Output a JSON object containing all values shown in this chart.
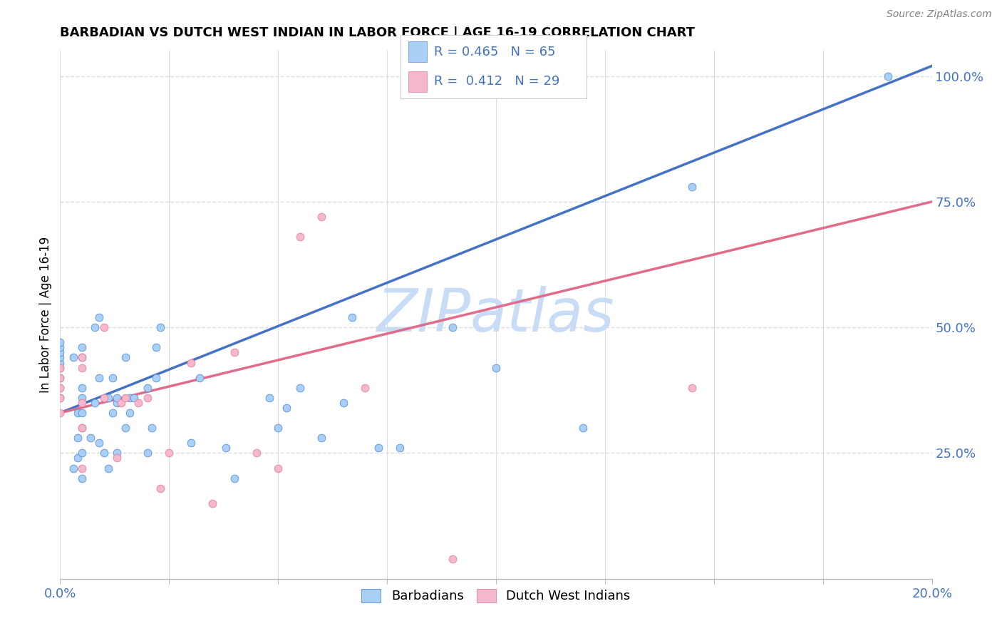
{
  "title": "BARBADIAN VS DUTCH WEST INDIAN IN LABOR FORCE | AGE 16-19 CORRELATION CHART",
  "source": "Source: ZipAtlas.com",
  "ylabel": "In Labor Force | Age 16-19",
  "xlim": [
    0.0,
    0.2
  ],
  "ylim": [
    0.0,
    1.05
  ],
  "xtick_positions": [
    0.0,
    0.025,
    0.05,
    0.075,
    0.1,
    0.125,
    0.15,
    0.175,
    0.2
  ],
  "xticklabels": [
    "0.0%",
    "",
    "",
    "",
    "",
    "",
    "",
    "",
    "20.0%"
  ],
  "ytick_positions": [
    0.25,
    0.5,
    0.75,
    1.0
  ],
  "ytick_labels": [
    "25.0%",
    "50.0%",
    "75.0%",
    "100.0%"
  ],
  "barbadian_color": "#A8D0F5",
  "dutch_color": "#F5B8CA",
  "barbadian_edge_color": "#5B8DD9",
  "dutch_edge_color": "#E87DA0",
  "barbadian_line_color": "#4472C4",
  "dutch_line_color": "#E06B8B",
  "legend_color_text": "#4472C4",
  "watermark": "ZIPatlas",
  "watermark_color": "#C8DCF5",
  "barbadian_x": [
    0.0,
    0.0,
    0.0,
    0.0,
    0.0,
    0.0,
    0.0,
    0.0,
    0.0,
    0.003,
    0.003,
    0.004,
    0.004,
    0.004,
    0.005,
    0.005,
    0.005,
    0.005,
    0.005,
    0.005,
    0.005,
    0.005,
    0.007,
    0.008,
    0.008,
    0.009,
    0.009,
    0.009,
    0.01,
    0.011,
    0.011,
    0.012,
    0.012,
    0.013,
    0.013,
    0.013,
    0.015,
    0.015,
    0.016,
    0.016,
    0.017,
    0.02,
    0.02,
    0.021,
    0.022,
    0.022,
    0.023,
    0.03,
    0.032,
    0.038,
    0.04,
    0.048,
    0.05,
    0.052,
    0.055,
    0.06,
    0.065,
    0.067,
    0.073,
    0.078,
    0.09,
    0.1,
    0.12,
    0.145,
    0.19
  ],
  "barbadian_y": [
    0.36,
    0.38,
    0.4,
    0.42,
    0.43,
    0.44,
    0.45,
    0.46,
    0.47,
    0.22,
    0.44,
    0.24,
    0.28,
    0.33,
    0.2,
    0.25,
    0.3,
    0.33,
    0.36,
    0.38,
    0.44,
    0.46,
    0.28,
    0.35,
    0.5,
    0.27,
    0.4,
    0.52,
    0.25,
    0.22,
    0.36,
    0.33,
    0.4,
    0.25,
    0.35,
    0.36,
    0.3,
    0.44,
    0.33,
    0.36,
    0.36,
    0.25,
    0.38,
    0.3,
    0.4,
    0.46,
    0.5,
    0.27,
    0.4,
    0.26,
    0.2,
    0.36,
    0.3,
    0.34,
    0.38,
    0.28,
    0.35,
    0.52,
    0.26,
    0.26,
    0.5,
    0.42,
    0.3,
    0.78,
    1.0
  ],
  "dutch_x": [
    0.0,
    0.0,
    0.0,
    0.0,
    0.0,
    0.005,
    0.005,
    0.005,
    0.005,
    0.005,
    0.01,
    0.01,
    0.013,
    0.014,
    0.015,
    0.018,
    0.02,
    0.023,
    0.025,
    0.03,
    0.035,
    0.04,
    0.045,
    0.05,
    0.055,
    0.06,
    0.07,
    0.09,
    0.145
  ],
  "dutch_y": [
    0.33,
    0.36,
    0.38,
    0.4,
    0.42,
    0.22,
    0.3,
    0.35,
    0.42,
    0.44,
    0.36,
    0.5,
    0.24,
    0.35,
    0.36,
    0.35,
    0.36,
    0.18,
    0.25,
    0.43,
    0.15,
    0.45,
    0.25,
    0.22,
    0.68,
    0.72,
    0.38,
    0.04,
    0.38
  ],
  "blue_line_x": [
    0.0,
    0.2
  ],
  "blue_line_y": [
    0.33,
    1.02
  ],
  "pink_line_x": [
    0.0,
    0.2
  ],
  "pink_line_y": [
    0.33,
    0.75
  ],
  "grid_color": "#DCDCDC",
  "background_color": "#FFFFFF"
}
